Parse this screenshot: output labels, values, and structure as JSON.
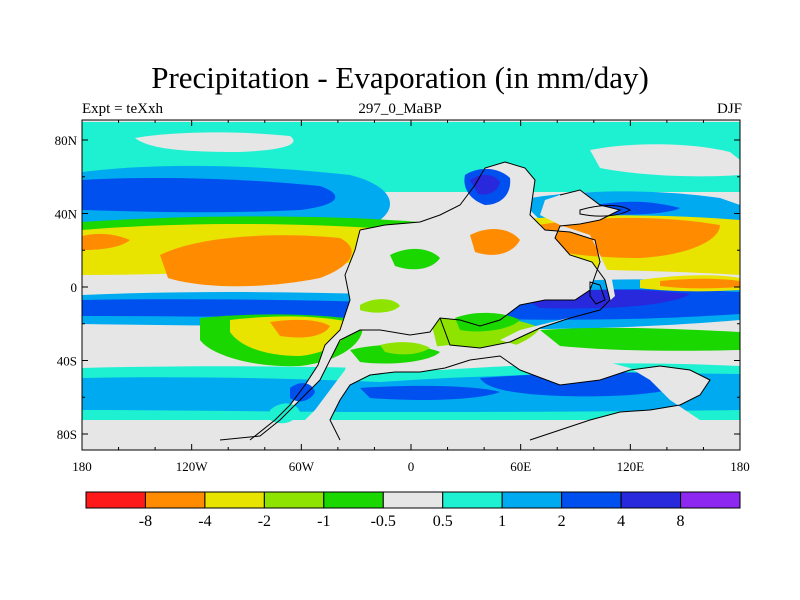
{
  "header": {
    "title": "Precipitation - Evaporation (in mm/day)",
    "left_label": "Expt = teXxh",
    "center_label": "297_0_MaBP",
    "right_label": "DJF"
  },
  "axes": {
    "x_ticks": [
      "180",
      "120W",
      "60W",
      "0",
      "60E",
      "120E",
      "180"
    ],
    "y_ticks": [
      "80N",
      "40N",
      "0",
      "40S",
      "80S"
    ]
  },
  "colorbar": {
    "colors": [
      "#ff1a1a",
      "#ff8c00",
      "#e8e400",
      "#8ee400",
      "#1ad700",
      "#e6e6e6",
      "#1ef0d2",
      "#00aaf0",
      "#0050f0",
      "#2828dc",
      "#8c28f0"
    ],
    "labels": [
      "-8",
      "-4",
      "-2",
      "-1",
      "-0.5",
      "0.5",
      "1",
      "2",
      "4",
      "8"
    ]
  },
  "palette": {
    "gray": "#e6e6e6",
    "cyan": "#1ef0d2",
    "lightblue": "#00aaf0",
    "blue": "#0050f0",
    "darkblue": "#2828dc",
    "purple": "#8c28f0",
    "green": "#1ad700",
    "ygreen": "#8ee400",
    "yellow": "#e8e400",
    "orange": "#ff8c00",
    "red": "#ff1a1a"
  }
}
